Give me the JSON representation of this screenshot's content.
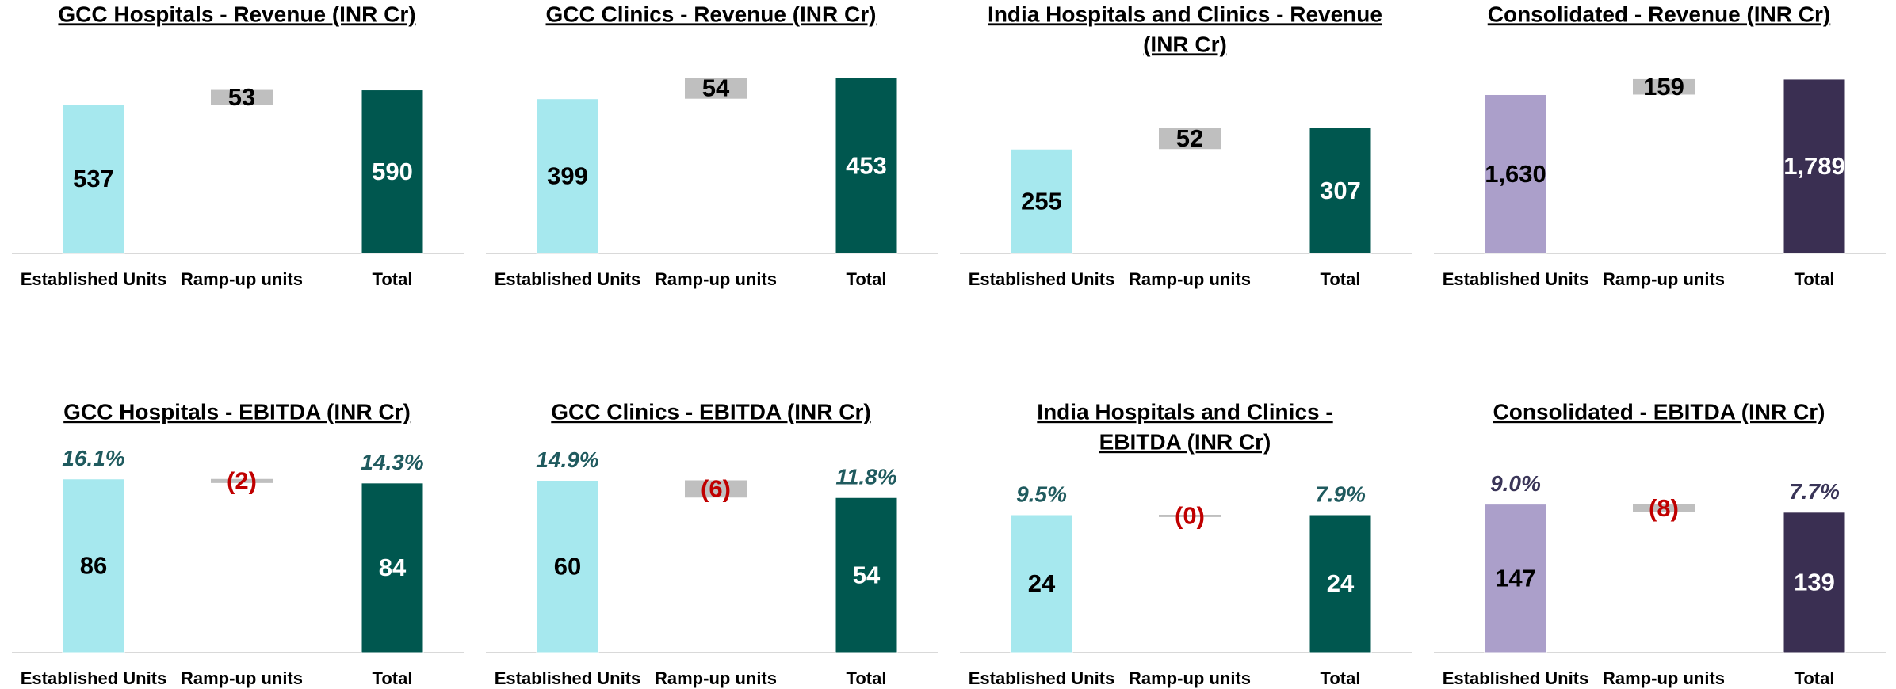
{
  "chart_data": [
    {
      "type": "waterfall",
      "title": [
        "GCC Hospitals - Revenue (INR Cr)"
      ],
      "categories": [
        "Established Units",
        "Ramp-up units",
        "Total"
      ],
      "values": [
        537,
        53,
        590
      ],
      "ylim": [
        0,
        663
      ],
      "colors": [
        "#a6e8ee",
        "#bfbfbf",
        "#00574f"
      ],
      "label_colors": [
        "#000000",
        "#000000",
        "#ffffff"
      ]
    },
    {
      "type": "waterfall",
      "title": [
        "GCC Clinics - Revenue (INR Cr)"
      ],
      "categories": [
        "Established Units",
        "Ramp-up units",
        "Total"
      ],
      "values": [
        399,
        54,
        453
      ],
      "ylim": [
        0,
        474
      ],
      "colors": [
        "#a6e8ee",
        "#bfbfbf",
        "#00574f"
      ],
      "label_colors": [
        "#000000",
        "#000000",
        "#ffffff"
      ]
    },
    {
      "type": "waterfall",
      "title": [
        "India Hospitals and Clinics - Revenue",
        "(INR Cr)"
      ],
      "categories": [
        "Established Units",
        "Ramp-up units",
        "Total"
      ],
      "values": [
        255,
        52,
        307
      ],
      "ylim": [
        0,
        449
      ],
      "colors": [
        "#a6e8ee",
        "#bfbfbf",
        "#00574f"
      ],
      "label_colors": [
        "#000000",
        "#000000",
        "#ffffff"
      ]
    },
    {
      "type": "waterfall",
      "title": [
        "Consolidated - Revenue (INR Cr)"
      ],
      "categories": [
        "Established Units",
        "Ramp-up units",
        "Total"
      ],
      "values": [
        1630,
        159,
        1789
      ],
      "value_labels": [
        "1,630",
        "159",
        "1,789"
      ],
      "ylim": [
        0,
        1886
      ],
      "colors": [
        "#ab9fca",
        "#bfbfbf",
        "#3a2f52"
      ],
      "label_colors": [
        "#000000",
        "#000000",
        "#ffffff"
      ]
    },
    {
      "type": "waterfall",
      "title": [
        "GCC Hospitals - EBITDA (INR Cr)"
      ],
      "categories": [
        "Established Units",
        "Ramp-up units",
        "Total"
      ],
      "values": [
        86,
        -2,
        84
      ],
      "value_labels": [
        "86",
        "(2)",
        "84"
      ],
      "margin_labels": [
        "16.1%",
        null,
        "14.3%"
      ],
      "margin_color": "#1f5a5e",
      "ylim": [
        0,
        91
      ],
      "colors": [
        "#a6e8ee",
        "#bfbfbf",
        "#00574f"
      ],
      "label_colors": [
        "#000000",
        "#c00000",
        "#ffffff"
      ]
    },
    {
      "type": "waterfall",
      "title": [
        "GCC Clinics - EBITDA (INR Cr)"
      ],
      "categories": [
        "Established Units",
        "Ramp-up units",
        "Total"
      ],
      "values": [
        60,
        -6,
        54
      ],
      "value_labels": [
        "60",
        "(6)",
        "54"
      ],
      "margin_labels": [
        "14.9%",
        null,
        "11.8%"
      ],
      "margin_color": "#1f5a5e",
      "ylim": [
        0,
        64
      ],
      "colors": [
        "#a6e8ee",
        "#bfbfbf",
        "#00574f"
      ],
      "label_colors": [
        "#000000",
        "#c00000",
        "#ffffff"
      ]
    },
    {
      "type": "waterfall",
      "title": [
        "India Hospitals and Clinics -",
        "EBITDA (INR Cr)"
      ],
      "categories": [
        "Established Units",
        "Ramp-up units",
        "Total"
      ],
      "values": [
        24,
        -0.4,
        24
      ],
      "value_labels": [
        "24",
        "(0)",
        "24"
      ],
      "margin_labels": [
        "9.5%",
        null,
        "7.9%"
      ],
      "margin_color": "#1f5a5e",
      "ylim": [
        0,
        32
      ],
      "colors": [
        "#a6e8ee",
        "#bfbfbf",
        "#00574f"
      ],
      "label_colors": [
        "#000000",
        "#c00000",
        "#ffffff"
      ]
    },
    {
      "type": "waterfall",
      "title": [
        "Consolidated - EBITDA (INR Cr)"
      ],
      "categories": [
        "Established Units",
        "Ramp-up units",
        "Total"
      ],
      "values": [
        147,
        -8,
        139
      ],
      "value_labels": [
        "147",
        "(8)",
        "139"
      ],
      "margin_labels": [
        "9.0%",
        null,
        "7.7%"
      ],
      "margin_color": "#3a3558",
      "ylim": [
        0,
        182
      ],
      "colors": [
        "#ab9fca",
        "#bfbfbf",
        "#3a2f52"
      ],
      "label_colors": [
        "#000000",
        "#c00000",
        "#ffffff"
      ]
    }
  ]
}
